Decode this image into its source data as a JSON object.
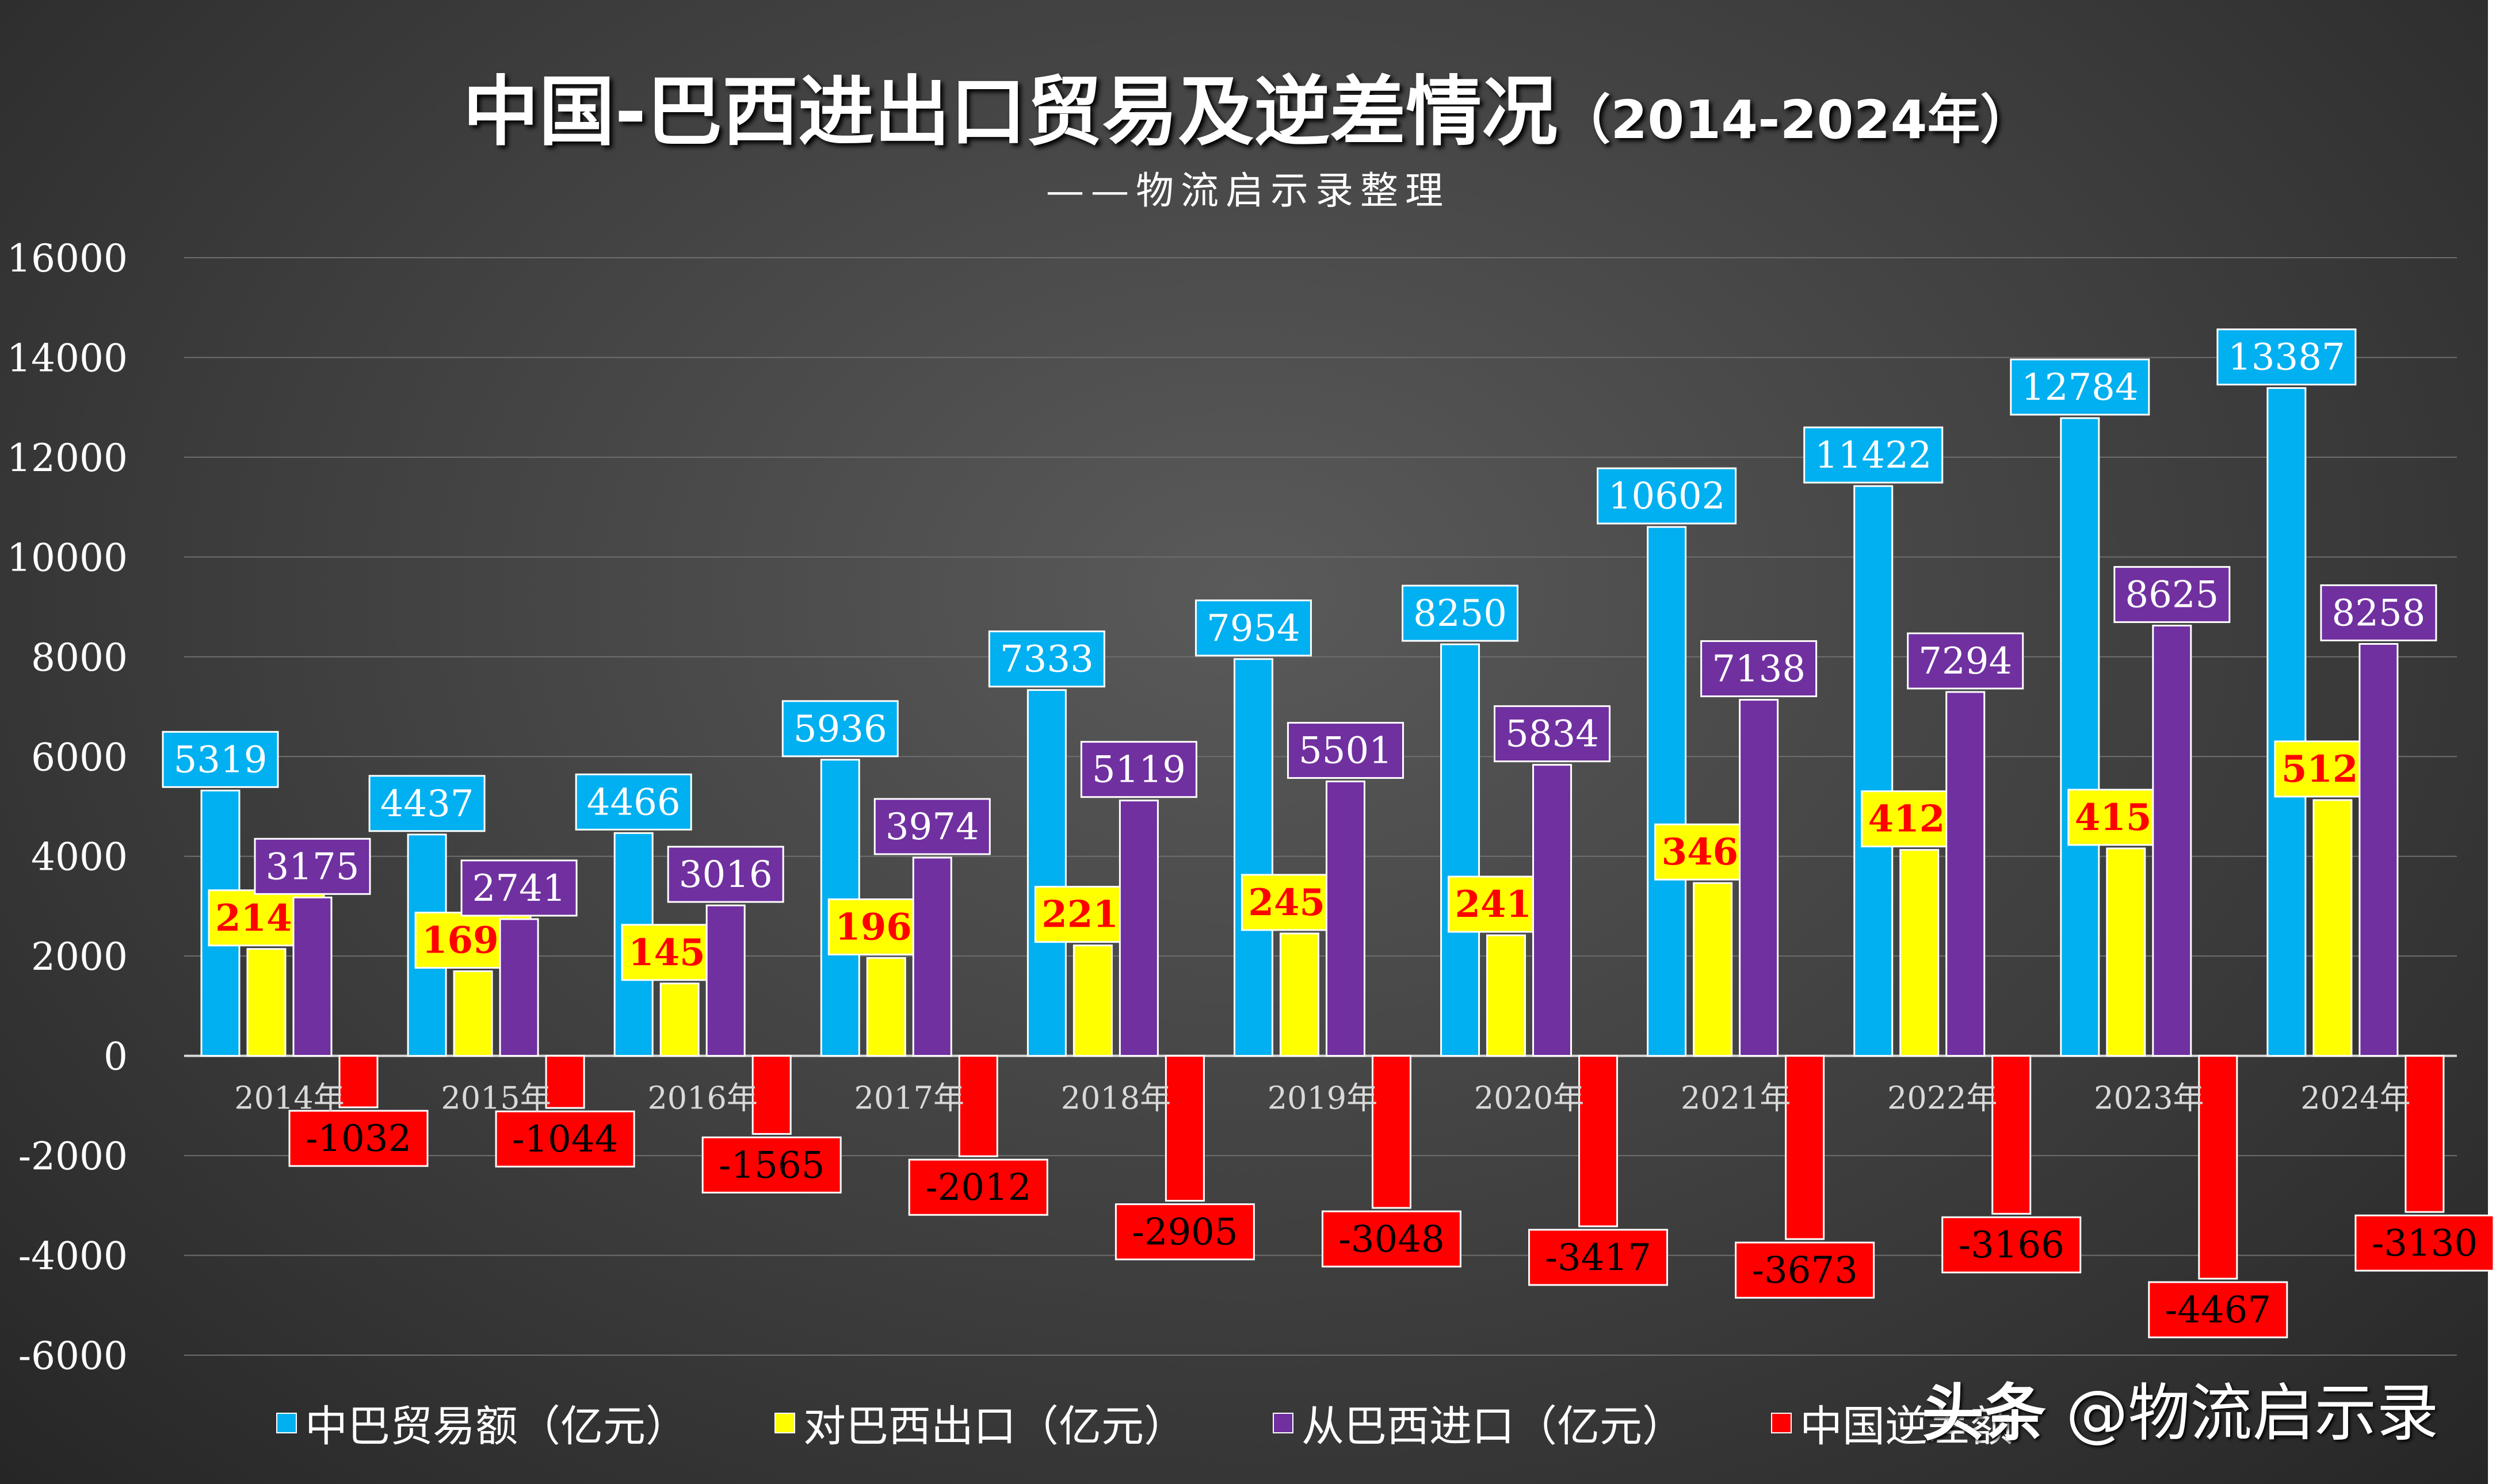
{
  "title": {
    "main": "中国-巴西进出口贸易及逆差情况",
    "years": "（2014-2024年）"
  },
  "subtitle": "——物流启示录整理",
  "watermark": {
    "brand": "头条",
    "handle": "@物流启示录"
  },
  "chart_data": {
    "type": "bar",
    "categories": [
      "2014年",
      "2015年",
      "2016年",
      "2017年",
      "2018年",
      "2019年",
      "2020年",
      "2021年",
      "2022年",
      "2023年",
      "2024年"
    ],
    "series": [
      {
        "name": "中巴贸易额（亿元）",
        "color": "#00b0f0",
        "label_color": "#ffffff",
        "values": [
          5319,
          4437,
          4466,
          5936,
          7333,
          7954,
          8250,
          10602,
          11422,
          12784,
          13387
        ]
      },
      {
        "name": "对巴西出口（亿元）",
        "color": "#ffff00",
        "label_color": "#ff0000",
        "values": [
          2143,
          1696,
          1451,
          1962,
          2214,
          2453,
          2417,
          3464,
          4128,
          4159,
          5128
        ]
      },
      {
        "name": "从巴西进口（亿元）",
        "color": "#7030a0",
        "label_color": "#ffffff",
        "values": [
          3175,
          2741,
          3016,
          3974,
          5119,
          5501,
          5834,
          7138,
          7294,
          8625,
          8258
        ]
      },
      {
        "name": "中国逆差额（亿元）",
        "color": "#ff0000",
        "label_color": "#000000",
        "values": [
          -1032,
          -1044,
          -1565,
          -2012,
          -2905,
          -3048,
          -3417,
          -3673,
          -3166,
          -4467,
          -3130
        ]
      }
    ],
    "legend_labels": [
      "中巴贸易额（亿元）",
      "对巴西出口（亿元）",
      "从巴西进口（亿元）",
      "中国逆差额"
    ],
    "ylim": [
      -6000,
      16000
    ],
    "yticks": [
      16000,
      14000,
      12000,
      10000,
      8000,
      6000,
      4000,
      2000,
      0,
      -2000,
      -4000,
      -6000
    ],
    "grid": true,
    "legend_position": "bottom"
  }
}
